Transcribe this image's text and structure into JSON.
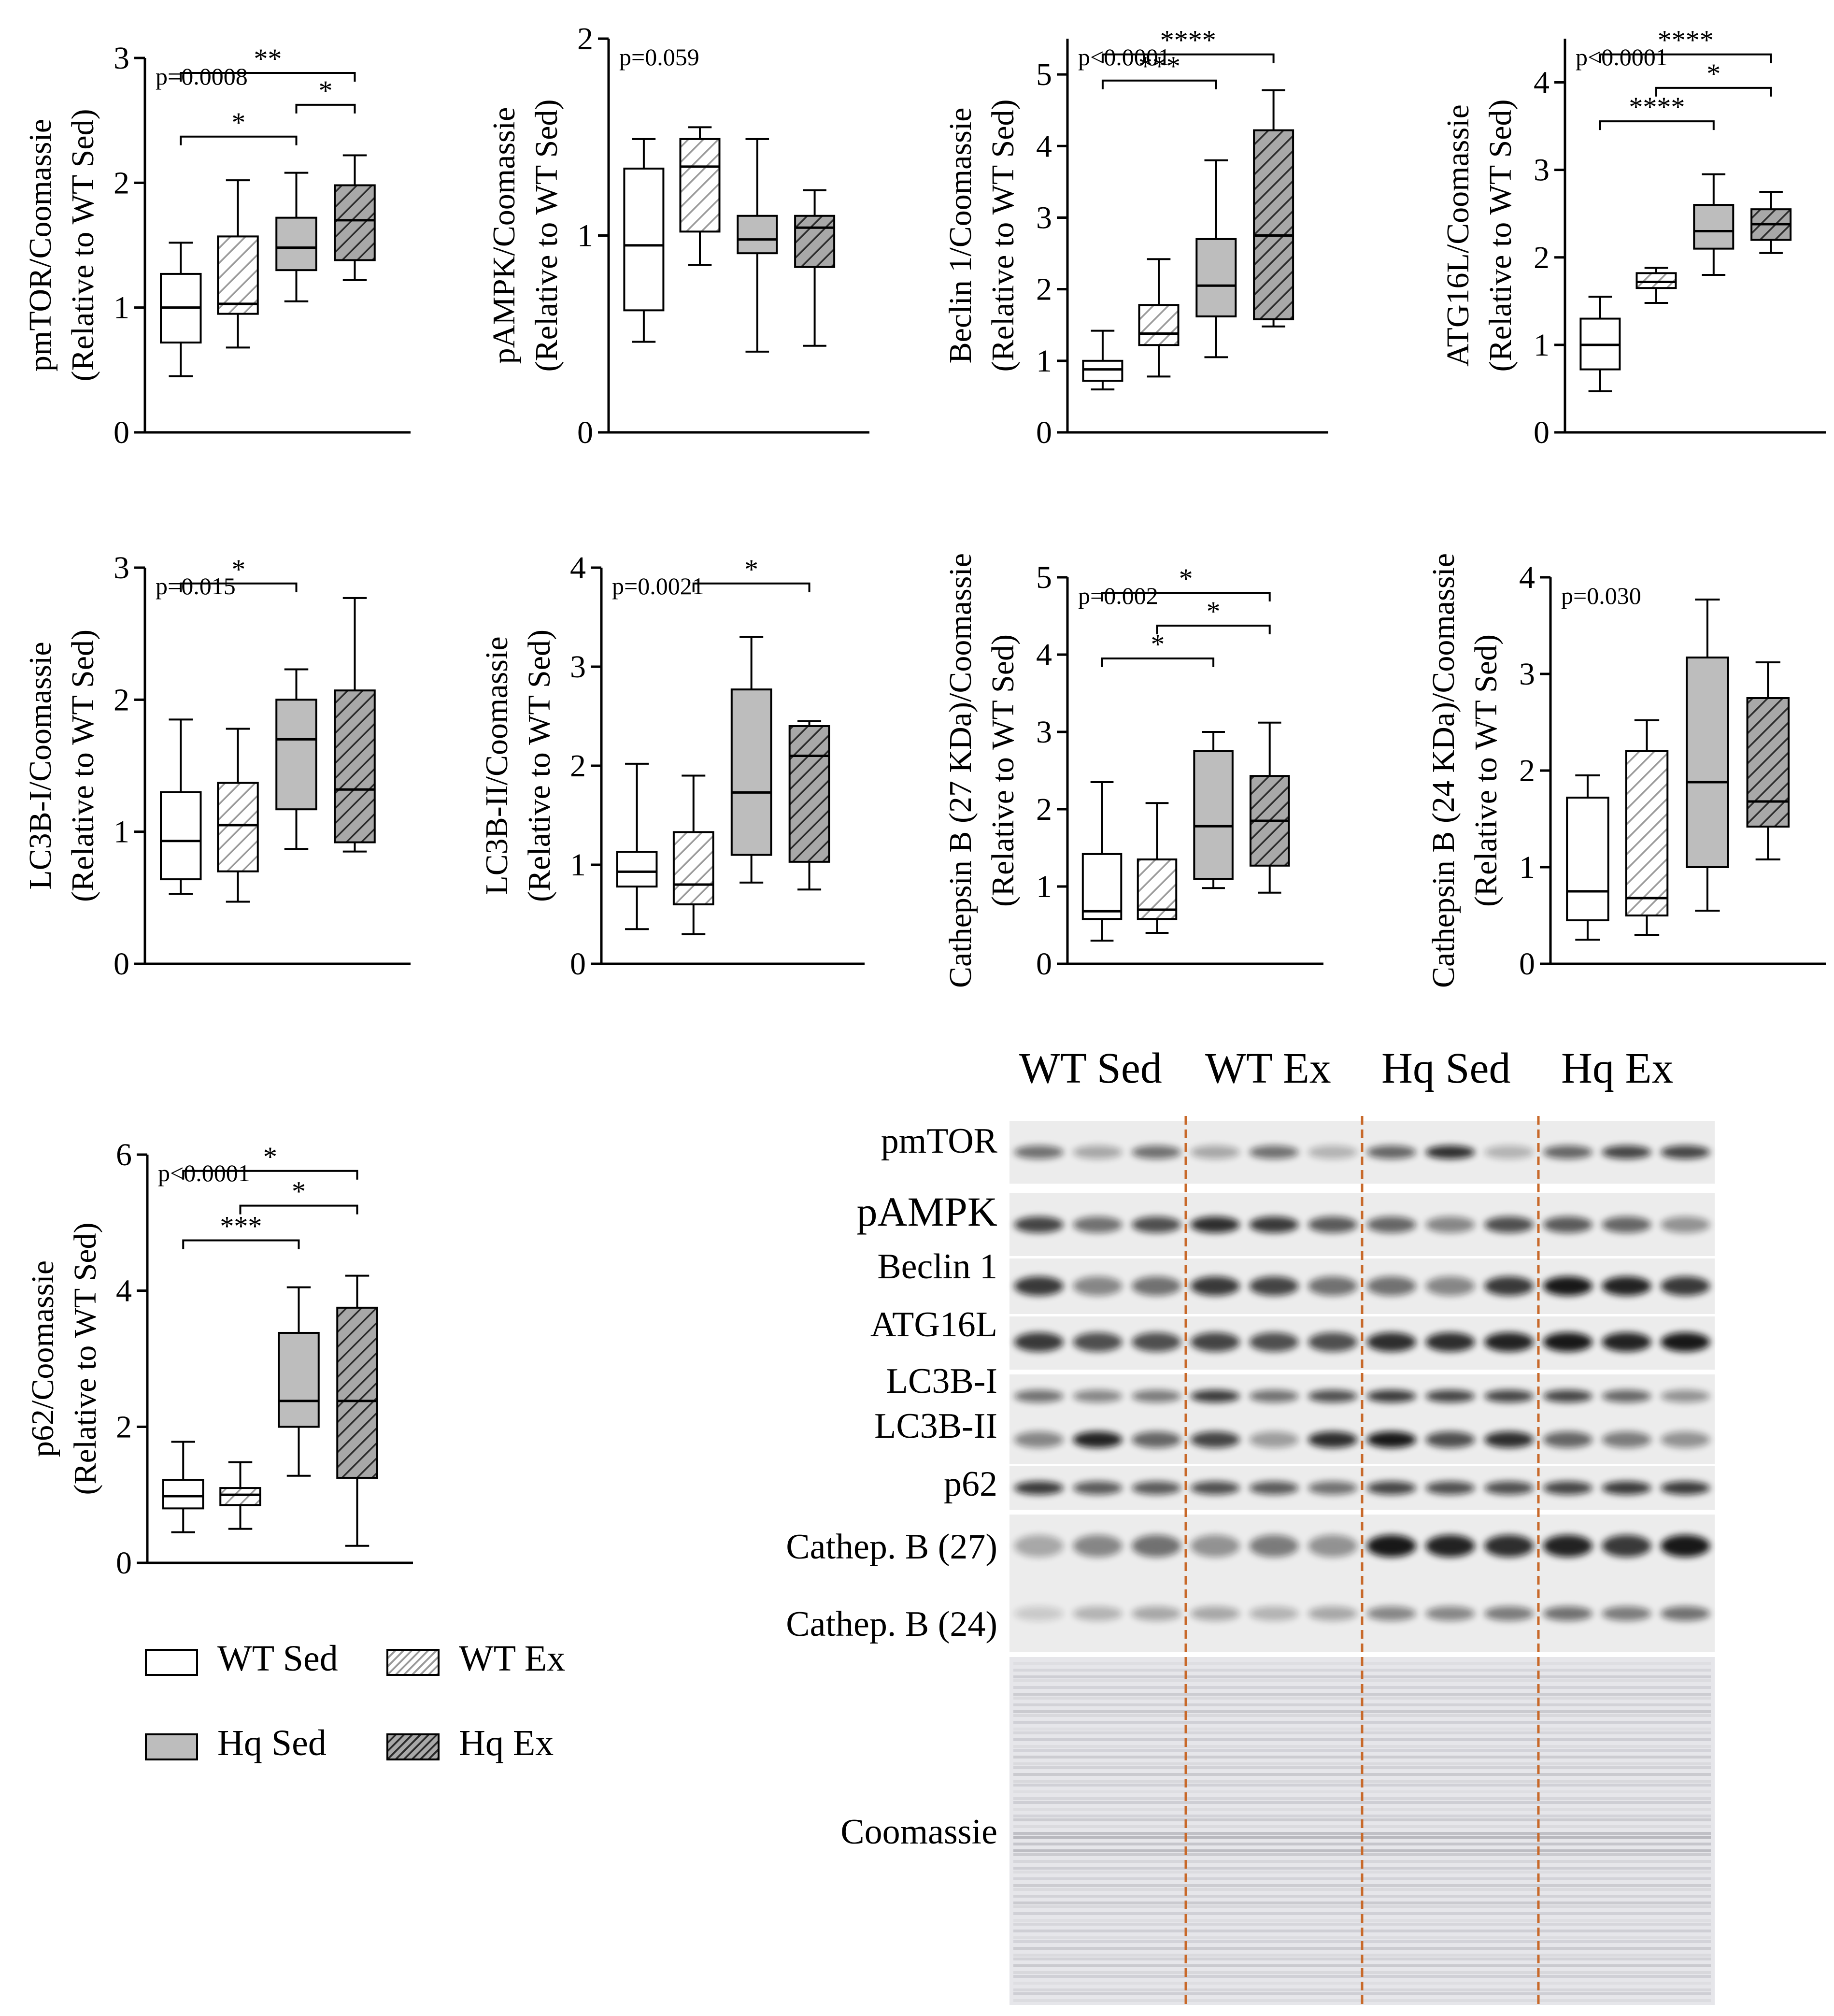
{
  "figure": {
    "colors": {
      "wt_sed": "#ffffff",
      "wt_ex": "#ffffff",
      "hq_sed": "#bdbdbd",
      "hq_ex": "#9e9e9e",
      "orange_divider": "#c8692a",
      "hatch_light": "#b0b0b0",
      "hatch_dark": "#333333"
    }
  },
  "legend": {
    "items": [
      {
        "label": "WT Sed",
        "pattern": "open"
      },
      {
        "label": "WT Ex",
        "pattern": "light-hatch"
      },
      {
        "label": "Hq Sed",
        "pattern": "gray"
      },
      {
        "label": "Hq Ex",
        "pattern": "dark-hatch"
      }
    ]
  },
  "chart_data": [
    {
      "type": "box",
      "ylabel": "pmTOR/Coomassie",
      "ylabel2": "(Relative to WT Sed)",
      "pvalue": "p=0.0008",
      "ylim": [
        0,
        3
      ],
      "yticks": [
        "0",
        "1",
        "2",
        "3"
      ],
      "boxes": [
        {
          "group": "WT Sed",
          "min": 0.45,
          "q1": 0.72,
          "median": 1.0,
          "q3": 1.27,
          "max": 1.52
        },
        {
          "group": "WT Ex",
          "min": 0.68,
          "q1": 0.95,
          "median": 1.03,
          "q3": 1.57,
          "max": 2.02
        },
        {
          "group": "Hq Sed",
          "min": 1.05,
          "q1": 1.3,
          "median": 1.48,
          "q3": 1.72,
          "max": 2.08
        },
        {
          "group": "Hq Ex",
          "min": 1.22,
          "q1": 1.38,
          "median": 1.7,
          "q3": 1.98,
          "max": 2.22
        }
      ],
      "sig": [
        {
          "from": 0,
          "to": 3,
          "label": "**"
        },
        {
          "from": 2,
          "to": 3,
          "label": "*"
        },
        {
          "from": 0,
          "to": 2,
          "label": "*"
        }
      ]
    },
    {
      "type": "box",
      "ylabel": "pAMPK/Coomassie",
      "ylabel2": "(Relative to WT Sed)",
      "pvalue": "p=0.059",
      "ylim": [
        0,
        2
      ],
      "yticks": [
        "0",
        "1",
        "2"
      ],
      "boxes": [
        {
          "group": "WT Sed",
          "min": 0.46,
          "q1": 0.62,
          "median": 0.95,
          "q3": 1.34,
          "max": 1.49
        },
        {
          "group": "WT Ex",
          "min": 0.85,
          "q1": 1.02,
          "median": 1.35,
          "q3": 1.49,
          "max": 1.55
        },
        {
          "group": "Hq Sed",
          "min": 0.41,
          "q1": 0.91,
          "median": 0.98,
          "q3": 1.1,
          "max": 1.49
        },
        {
          "group": "Hq Ex",
          "min": 0.44,
          "q1": 0.84,
          "median": 1.04,
          "q3": 1.1,
          "max": 1.23
        }
      ],
      "sig": []
    },
    {
      "type": "box",
      "ylabel": "Beclin 1/Coomassie",
      "ylabel2": "(Relative to WT Sed)",
      "pvalue": "p<0.0001",
      "ylim": [
        0,
        5.5
      ],
      "yticks": [
        "0",
        "1",
        "2",
        "3",
        "4",
        "5"
      ],
      "boxes": [
        {
          "group": "WT Sed",
          "min": 0.6,
          "q1": 0.72,
          "median": 0.88,
          "q3": 1.0,
          "max": 1.42
        },
        {
          "group": "WT Ex",
          "min": 0.78,
          "q1": 1.22,
          "median": 1.38,
          "q3": 1.78,
          "max": 2.42
        },
        {
          "group": "Hq Sed",
          "min": 1.05,
          "q1": 1.62,
          "median": 2.05,
          "q3": 2.7,
          "max": 3.8
        },
        {
          "group": "Hq Ex",
          "min": 1.48,
          "q1": 1.58,
          "median": 2.75,
          "q3": 4.22,
          "max": 4.78
        }
      ],
      "sig": [
        {
          "from": 0,
          "to": 3,
          "label": "****"
        },
        {
          "from": 0,
          "to": 2,
          "label": "***"
        }
      ]
    },
    {
      "type": "box",
      "ylabel": "ATG16L/Coomassie",
      "ylabel2": "(Relative to WT Sed)",
      "pvalue": "p<0.0001",
      "ylim": [
        0,
        4.5
      ],
      "yticks": [
        "0",
        "1",
        "2",
        "3",
        "4"
      ],
      "boxes": [
        {
          "group": "WT Sed",
          "min": 0.47,
          "q1": 0.72,
          "median": 1.0,
          "q3": 1.3,
          "max": 1.55
        },
        {
          "group": "WT Ex",
          "min": 1.48,
          "q1": 1.65,
          "median": 1.72,
          "q3": 1.82,
          "max": 1.88
        },
        {
          "group": "Hq Sed",
          "min": 1.8,
          "q1": 2.1,
          "median": 2.3,
          "q3": 2.6,
          "max": 2.95
        },
        {
          "group": "Hq Ex",
          "min": 2.05,
          "q1": 2.2,
          "median": 2.38,
          "q3": 2.55,
          "max": 2.75
        }
      ],
      "sig": [
        {
          "from": 0,
          "to": 3,
          "label": "****"
        },
        {
          "from": 1,
          "to": 3,
          "label": "*"
        },
        {
          "from": 0,
          "to": 2,
          "label": "****"
        }
      ]
    },
    {
      "type": "box",
      "ylabel": "LC3B-I/Coomassie",
      "ylabel2": "(Relative to WT Sed)",
      "pvalue": "p=0.015",
      "ylim": [
        0,
        3
      ],
      "yticks": [
        "0",
        "1",
        "2",
        "3"
      ],
      "boxes": [
        {
          "group": "WT Sed",
          "min": 0.53,
          "q1": 0.64,
          "median": 0.93,
          "q3": 1.3,
          "max": 1.85
        },
        {
          "group": "WT Ex",
          "min": 0.47,
          "q1": 0.7,
          "median": 1.05,
          "q3": 1.37,
          "max": 1.78
        },
        {
          "group": "Hq Sed",
          "min": 0.87,
          "q1": 1.17,
          "median": 1.7,
          "q3": 2.0,
          "max": 2.23
        },
        {
          "group": "Hq Ex",
          "min": 0.85,
          "q1": 0.92,
          "median": 1.32,
          "q3": 2.07,
          "max": 2.77
        }
      ],
      "sig": [
        {
          "from": 0,
          "to": 2,
          "label": "*"
        }
      ]
    },
    {
      "type": "box",
      "ylabel": "LC3B-II/Coomassie",
      "ylabel2": "(Relative to WT Sed)",
      "pvalue": "p=0.0021",
      "ylim": [
        0,
        4
      ],
      "yticks": [
        "0",
        "1",
        "2",
        "3",
        "4"
      ],
      "boxes": [
        {
          "group": "WT Sed",
          "min": 0.35,
          "q1": 0.78,
          "median": 0.93,
          "q3": 1.13,
          "max": 2.02
        },
        {
          "group": "WT Ex",
          "min": 0.3,
          "q1": 0.6,
          "median": 0.8,
          "q3": 1.33,
          "max": 1.9
        },
        {
          "group": "Hq Sed",
          "min": 0.82,
          "q1": 1.1,
          "median": 1.73,
          "q3": 2.77,
          "max": 3.3
        },
        {
          "group": "Hq Ex",
          "min": 0.75,
          "q1": 1.03,
          "median": 2.1,
          "q3": 2.4,
          "max": 2.45
        }
      ],
      "sig": [
        {
          "from": 1,
          "to": 3,
          "label": "*"
        }
      ]
    },
    {
      "type": "box",
      "ylabel": "Cathepsin B (27 KDa)/Coomassie",
      "ylabel2": "(Relative to WT Sed)",
      "pvalue": "p=0.002",
      "ylim": [
        0,
        5
      ],
      "yticks": [
        "0",
        "1",
        "2",
        "3",
        "4",
        "5"
      ],
      "boxes": [
        {
          "group": "WT Sed",
          "min": 0.3,
          "q1": 0.58,
          "median": 0.68,
          "q3": 1.42,
          "max": 2.35
        },
        {
          "group": "WT Ex",
          "min": 0.4,
          "q1": 0.58,
          "median": 0.7,
          "q3": 1.35,
          "max": 2.08
        },
        {
          "group": "Hq Sed",
          "min": 0.98,
          "q1": 1.1,
          "median": 1.78,
          "q3": 2.75,
          "max": 3.0
        },
        {
          "group": "Hq Ex",
          "min": 0.92,
          "q1": 1.27,
          "median": 1.85,
          "q3": 2.43,
          "max": 3.12
        }
      ],
      "sig": [
        {
          "from": 0,
          "to": 3,
          "label": "*"
        },
        {
          "from": 1,
          "to": 3,
          "label": "*"
        },
        {
          "from": 0,
          "to": 2,
          "label": "*"
        }
      ]
    },
    {
      "type": "box",
      "ylabel": "Cathepsin B (24 KDa)/Coomassie",
      "ylabel2": "(Relative to WT Sed)",
      "pvalue": "p=0.030",
      "ylim": [
        0,
        4
      ],
      "yticks": [
        "0",
        "1",
        "2",
        "3",
        "4"
      ],
      "boxes": [
        {
          "group": "WT Sed",
          "min": 0.25,
          "q1": 0.45,
          "median": 0.75,
          "q3": 1.72,
          "max": 1.95
        },
        {
          "group": "WT Ex",
          "min": 0.3,
          "q1": 0.5,
          "median": 0.68,
          "q3": 2.2,
          "max": 2.52
        },
        {
          "group": "Hq Sed",
          "min": 0.55,
          "q1": 1.0,
          "median": 1.88,
          "q3": 3.17,
          "max": 3.77
        },
        {
          "group": "Hq Ex",
          "min": 1.08,
          "q1": 1.42,
          "median": 1.68,
          "q3": 2.75,
          "max": 3.12
        }
      ],
      "sig": []
    },
    {
      "type": "box",
      "ylabel": "p62/Coomassie",
      "ylabel2": "(Relative to WT Sed)",
      "pvalue": "p<0.0001",
      "ylim": [
        0,
        6
      ],
      "yticks": [
        "0",
        "2",
        "4",
        "6"
      ],
      "boxes": [
        {
          "group": "WT Sed",
          "min": 0.45,
          "q1": 0.8,
          "median": 0.98,
          "q3": 1.22,
          "max": 1.78
        },
        {
          "group": "WT Ex",
          "min": 0.5,
          "q1": 0.85,
          "median": 1.0,
          "q3": 1.1,
          "max": 1.48
        },
        {
          "group": "Hq Sed",
          "min": 1.28,
          "q1": 2.0,
          "median": 2.38,
          "q3": 3.38,
          "max": 4.05
        },
        {
          "group": "Hq Ex",
          "min": 0.25,
          "q1": 1.25,
          "median": 2.38,
          "q3": 3.75,
          "max": 4.22
        }
      ],
      "sig": [
        {
          "from": 0,
          "to": 3,
          "label": "*"
        },
        {
          "from": 1,
          "to": 3,
          "label": "*"
        },
        {
          "from": 0,
          "to": 2,
          "label": "***"
        }
      ]
    }
  ],
  "blot": {
    "groups": [
      "WT Sed",
      "WT Ex",
      "Hq Sed",
      "Hq Ex"
    ],
    "rows": [
      {
        "label": "pmTOR",
        "intensity": [
          0.55,
          0.3,
          0.55,
          0.3,
          0.55,
          0.25,
          0.6,
          0.85,
          0.25,
          0.6,
          0.75,
          0.75
        ]
      },
      {
        "label": "pAMPK",
        "intensity": [
          0.75,
          0.55,
          0.7,
          0.85,
          0.8,
          0.65,
          0.6,
          0.45,
          0.7,
          0.65,
          0.6,
          0.4
        ]
      },
      {
        "label": "Beclin 1",
        "intensity": [
          0.8,
          0.45,
          0.55,
          0.8,
          0.75,
          0.55,
          0.55,
          0.45,
          0.8,
          0.95,
          0.9,
          0.8
        ]
      },
      {
        "label": "ATG16L",
        "intensity": [
          0.8,
          0.7,
          0.7,
          0.75,
          0.7,
          0.7,
          0.85,
          0.85,
          0.9,
          0.95,
          0.9,
          0.95
        ]
      },
      {
        "label": "LC3B-I",
        "intensity": [
          0.55,
          0.45,
          0.5,
          0.8,
          0.55,
          0.7,
          0.8,
          0.75,
          0.75,
          0.75,
          0.6,
          0.4
        ]
      },
      {
        "label": "LC3B-II",
        "intensity": [
          0.45,
          0.9,
          0.6,
          0.75,
          0.35,
          0.85,
          0.95,
          0.7,
          0.85,
          0.6,
          0.5,
          0.4
        ]
      },
      {
        "label": "p62",
        "intensity": [
          0.8,
          0.65,
          0.65,
          0.7,
          0.65,
          0.55,
          0.75,
          0.7,
          0.7,
          0.75,
          0.8,
          0.8
        ]
      },
      {
        "label": "Cathep. B (27)",
        "intensity": [
          0.3,
          0.45,
          0.55,
          0.4,
          0.5,
          0.4,
          0.95,
          0.9,
          0.85,
          0.9,
          0.8,
          0.95
        ]
      },
      {
        "label": "Cathep. B (24)",
        "intensity": [
          0.15,
          0.25,
          0.3,
          0.3,
          0.25,
          0.3,
          0.45,
          0.45,
          0.5,
          0.55,
          0.5,
          0.55
        ]
      },
      {
        "label": "Coomassie",
        "intensity": []
      }
    ]
  }
}
